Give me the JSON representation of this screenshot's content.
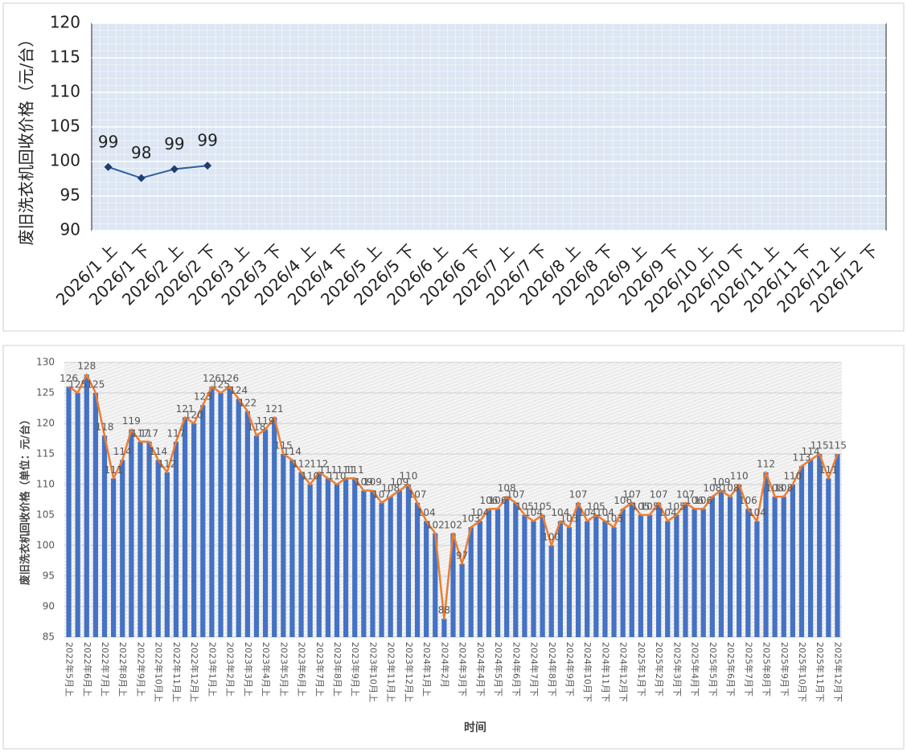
{
  "chart_data": [
    {
      "type": "line",
      "ylabel": "废旧洗衣机回收价格（元/台）",
      "categories": [
        "2026/1 上",
        "2026/1 下",
        "2026/2 上",
        "2026/2 下",
        "2026/3 上",
        "2026/3 下",
        "2026/4 上",
        "2026/4 下",
        "2026/5 上",
        "2026/5 下",
        "2026/6 上",
        "2026/6 下",
        "2026/7 上",
        "2026/7 下",
        "2026/8 上",
        "2026/8 下",
        "2026/9 上",
        "2026/9 下",
        "2026/10 上",
        "2026/10 下",
        "2026/11 上",
        "2026/11 下",
        "2026/12 上",
        "2026/12 下"
      ],
      "values": [
        99.2,
        97.6,
        98.9,
        99.4,
        null,
        null,
        null,
        null,
        null,
        null,
        null,
        null,
        null,
        null,
        null,
        null,
        null,
        null,
        null,
        null,
        null,
        null,
        null,
        null
      ],
      "value_labels": [
        "99",
        "98",
        "99",
        "99",
        null,
        null,
        null,
        null,
        null,
        null,
        null,
        null,
        null,
        null,
        null,
        null,
        null,
        null,
        null,
        null,
        null,
        null,
        null,
        null
      ],
      "color": "#2e5f9e",
      "marker_color": "#1f3d6e",
      "ylim": [
        90,
        120
      ],
      "yticks": [
        90,
        95,
        100,
        105,
        110,
        115,
        120
      ],
      "grid": true
    },
    {
      "type": "bar_line",
      "ylabel": "废旧洗衣机回收价格（单位：元/台）",
      "xlabel": "时间",
      "categories": [
        "2022年5月上",
        null,
        "2022年6月上",
        null,
        "2022年7月上",
        null,
        "2022年8月上",
        null,
        "2022年9月上",
        null,
        "2022年10月上",
        null,
        "2022年11月上",
        null,
        "2022年12月上",
        null,
        "2023年1月上",
        null,
        "2023年2月上",
        null,
        "2023年3月上",
        null,
        "2023年4月上",
        null,
        "2023年5月上",
        null,
        "2023年6月上",
        null,
        "2023年7月上",
        null,
        "2023年8月上",
        null,
        "2023年9月上",
        null,
        "2023年10月上",
        null,
        "2023年11月上",
        null,
        "2023年12月上",
        null,
        "2024年1月上",
        null,
        "2024年2月",
        null,
        "2024年3月下",
        null,
        "2024年4月下",
        null,
        "2024年5月下",
        null,
        "2024年6月下",
        null,
        "2024年7月下",
        null,
        "2024年8月下",
        null,
        "2024年9月下",
        null,
        "2024年10月下",
        null,
        "2024年11月下",
        null,
        "2024年12月下",
        null,
        "2025年1月下",
        null,
        "2025年2月下",
        null,
        "2025年3月下",
        null,
        "2025年4月下",
        null,
        "2025年5月下",
        null,
        "2025年6月下",
        null,
        "2025年7月下",
        null,
        "2025年8月下",
        null,
        "2025年9月下",
        null,
        "2025年10月下",
        null,
        "2025年11月下",
        null,
        "2025年12月下"
      ],
      "values": [
        126,
        125,
        128,
        125,
        118,
        111,
        114,
        119,
        117,
        117,
        114,
        112,
        117,
        121,
        120,
        123,
        126,
        125,
        126,
        124,
        122,
        118,
        119,
        121,
        115,
        114,
        112,
        110,
        112,
        111,
        110,
        111,
        111,
        109,
        109,
        107,
        108,
        109,
        110,
        107,
        104,
        102,
        88,
        102,
        97,
        103,
        104,
        106,
        106,
        108,
        107,
        105,
        104,
        105,
        100,
        104,
        103,
        107,
        104,
        105,
        104,
        103,
        106,
        107,
        105,
        105,
        107,
        104,
        105,
        107,
        106,
        106,
        108,
        109,
        108,
        110,
        106,
        104,
        112,
        108,
        108,
        110,
        113,
        114,
        115,
        111,
        115
      ],
      "bar_color": "#4472c4",
      "line_color": "#ed7d31",
      "ylim": [
        85,
        130
      ],
      "yticks": [
        85,
        90,
        95,
        100,
        105,
        110,
        115,
        120,
        125,
        130
      ],
      "grid": true
    }
  ]
}
